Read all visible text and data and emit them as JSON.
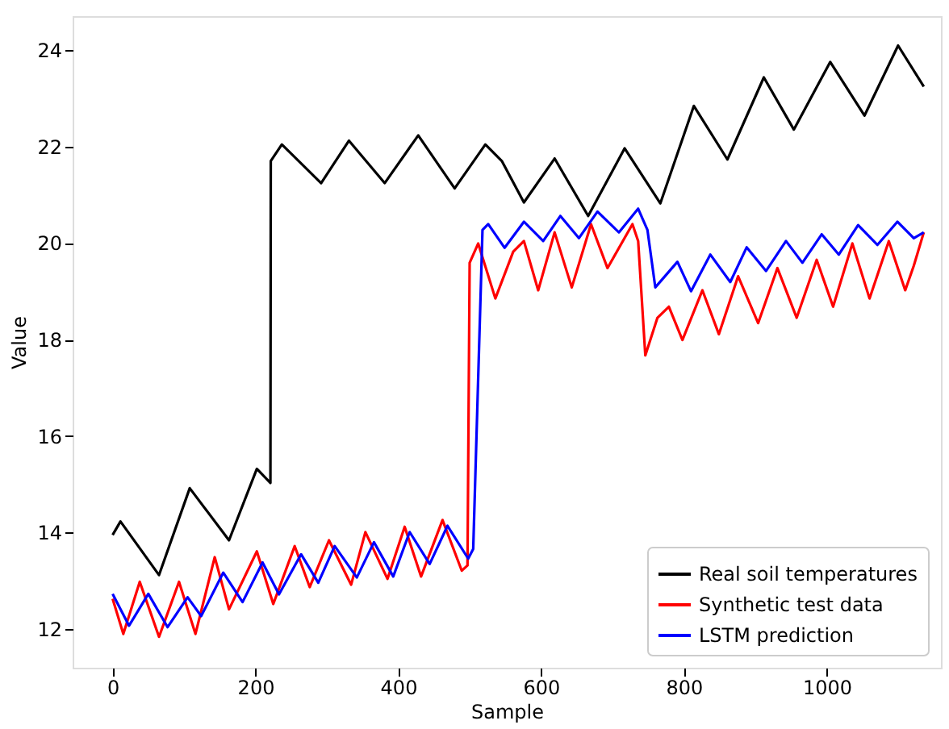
{
  "chart_data": {
    "type": "line",
    "xlabel": "Sample",
    "ylabel": "Value",
    "xlim": [
      -56,
      1160
    ],
    "ylim": [
      11.2,
      24.7
    ],
    "xticks": [
      0,
      200,
      400,
      600,
      800,
      1000
    ],
    "yticks": [
      12,
      14,
      16,
      18,
      20,
      22,
      24
    ],
    "grid": false,
    "legend": "bottom right",
    "marker": "none",
    "line_style": "solid",
    "series": [
      {
        "name": "Real soil temperatures",
        "color": "#000000",
        "x": [
          0,
          11,
          65,
          108,
          163,
          202,
          221,
          221.5,
          237,
          292,
          331,
          381,
          428,
          479,
          522,
          545,
          576,
          619,
          666,
          717,
          767,
          814,
          861,
          912,
          954,
          1005,
          1053,
          1100,
          1136
        ],
        "values": [
          13.95,
          14.23,
          13.12,
          14.92,
          13.84,
          15.32,
          15.03,
          21.7,
          22.04,
          21.24,
          22.12,
          21.24,
          22.23,
          21.13,
          22.04,
          21.7,
          20.84,
          21.75,
          20.56,
          21.96,
          20.82,
          22.84,
          21.73,
          23.43,
          22.35,
          23.75,
          22.64,
          24.09,
          23.24
        ]
      },
      {
        "name": "Synthetic test data",
        "color": "#ff0000",
        "x": [
          0,
          15,
          38,
          65,
          93,
          116,
          143,
          163,
          202,
          225,
          255,
          276,
          303,
          334,
          354,
          385,
          409,
          432,
          462,
          489,
          497,
          500,
          512,
          536,
          561,
          576,
          596,
          619,
          643,
          670,
          693,
          728,
          736,
          746,
          763,
          779,
          798,
          826,
          849,
          876,
          904,
          931,
          958,
          986,
          1009,
          1036,
          1060,
          1087,
          1110,
          1122,
          1136
        ],
        "values": [
          12.63,
          11.9,
          12.98,
          11.84,
          12.98,
          11.9,
          13.49,
          12.41,
          13.61,
          12.52,
          13.72,
          12.87,
          13.84,
          12.92,
          14.01,
          13.04,
          14.12,
          13.09,
          14.26,
          13.21,
          13.32,
          19.59,
          19.99,
          18.85,
          19.82,
          20.04,
          19.02,
          20.22,
          19.08,
          20.39,
          19.48,
          20.39,
          20.04,
          17.67,
          18.45,
          18.68,
          17.99,
          19.02,
          18.11,
          19.31,
          18.34,
          19.48,
          18.45,
          19.65,
          18.68,
          19.99,
          18.85,
          20.04,
          19.02,
          19.53,
          20.22
        ]
      },
      {
        "name": "LSTM prediction",
        "color": "#0000ff",
        "x": [
          0,
          23,
          50,
          77,
          105,
          124,
          155,
          182,
          210,
          233,
          264,
          288,
          311,
          342,
          366,
          393,
          416,
          444,
          469,
          498,
          505,
          518,
          526,
          549,
          576,
          603,
          627,
          653,
          679,
          709,
          736,
          749,
          760,
          791,
          810,
          837,
          865,
          888,
          915,
          943,
          966,
          993,
          1017,
          1044,
          1071,
          1099,
          1122,
          1136
        ],
        "values": [
          12.73,
          12.07,
          12.73,
          12.04,
          12.66,
          12.27,
          13.17,
          12.56,
          13.38,
          12.72,
          13.55,
          12.96,
          13.72,
          13.07,
          13.8,
          13.09,
          14.01,
          13.35,
          14.14,
          13.46,
          13.66,
          20.27,
          20.39,
          19.9,
          20.44,
          20.04,
          20.56,
          20.1,
          20.65,
          20.22,
          20.71,
          20.27,
          19.08,
          19.61,
          19.0,
          19.76,
          19.19,
          19.91,
          19.42,
          20.04,
          19.59,
          20.18,
          19.76,
          20.37,
          19.96,
          20.44,
          20.1,
          20.22
        ]
      }
    ]
  }
}
